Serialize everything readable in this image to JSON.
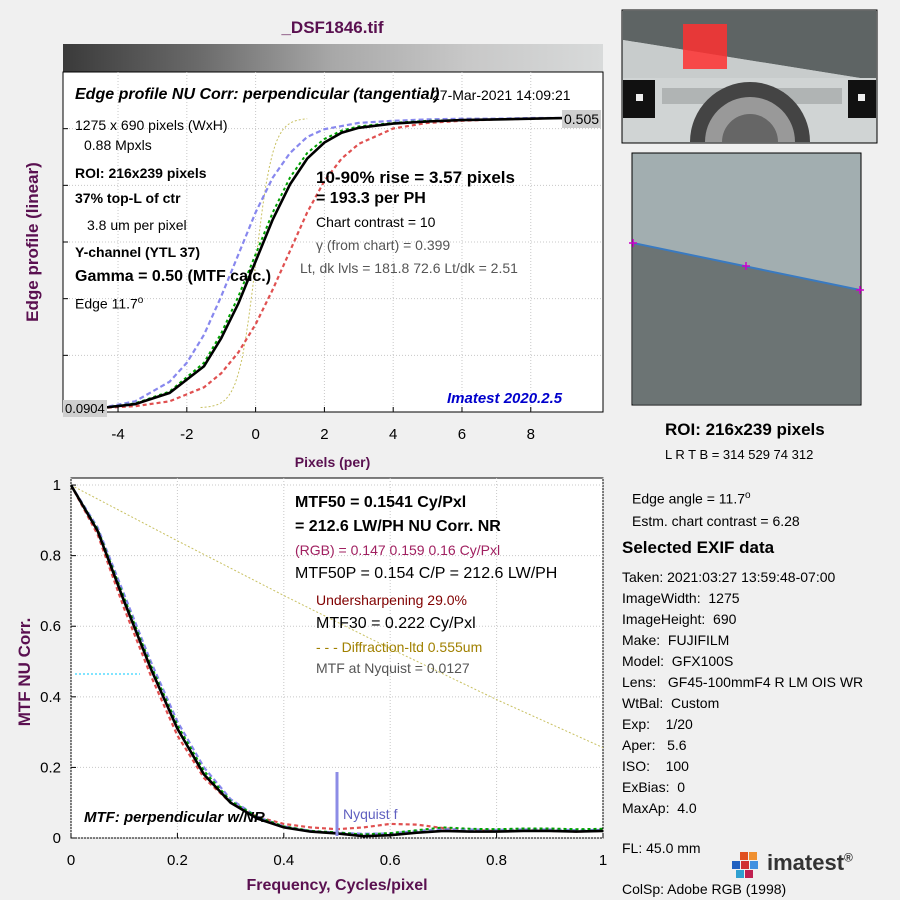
{
  "window": {
    "title": "_DSF1846.tif"
  },
  "top_chart": {
    "ylabel": "Edge profile (linear)",
    "xlabel": "Pixels (per)",
    "title": "Edge profile  NU Corr: perpendicular (tangential)",
    "timestamp": "27-Mar-2021 14:09:21",
    "max_label": "0.505",
    "min_label": "0.0904",
    "version": "Imatest 2020.2.5",
    "info": {
      "dims": "1275 x 690 pixels (WxH)",
      "mpxls": "0.88 Mpxls",
      "roi": "ROI:  216x239 pixels",
      "pos": "37% top-L of ctr",
      "pixel_size": "3.8 um per pixel",
      "channel": "Y-channel  (YTL 37)",
      "gamma": "Gamma = 0.50 (MTF calc.)",
      "edge_label": "Edge   11.7",
      "edge_deg": "o"
    },
    "rise": {
      "line1": "10-90% rise = 3.57 pixels",
      "line2": "=  193.3 per PH",
      "contrast": "Chart contrast = 10",
      "gamma": "γ  (from chart) = 0.399",
      "levels": "Lt, dk lvls = 181.8  72.6  Lt/dk = 2.51"
    }
  },
  "bottom_chart": {
    "ylabel": "MTF  NU Corr.",
    "xlabel": "Frequency, Cycles/pixel",
    "mtf50_line1": "MTF50 = 0.1541 Cy/Pxl",
    "mtf50_line2": "= 212.6 LW/PH  NU Corr.  NR",
    "rgb": "(RGB) = 0.147  0.159  0.16 Cy/Pxl",
    "mtf50p": "MTF50P = 0.154 C/P = 212.6 LW/PH",
    "undersharp": "Undersharpening 29.0%",
    "mtf30": "MTF30 = 0.222 Cy/Pxl",
    "diffraction": "- - - Diffraction-ltd  0.555um",
    "nyquist_mtf": "MTF at Nyquist = 0.0127",
    "nyquist_label": "Nyquist f",
    "caption": "MTF: perpendicular w/NR"
  },
  "roi_panel": {
    "title": "ROI:  216x239 pixels",
    "coords": "L R  T B = 314  529   74  312",
    "edge_angle": "Edge angle = 11.7",
    "edge_angle_deg": "o",
    "contrast": "Estm. chart contrast = 6.28"
  },
  "exif": {
    "title": "Selected EXIF data",
    "rows": [
      "Taken: 2021:03:27 13:59:48-07:00",
      "ImageWidth:  1275",
      "ImageHeight:  690",
      "Make:  FUJIFILM",
      "Model:  GFX100S",
      "Lens:   GF45-100mmF4 R LM OIS WR",
      "WtBal:  Custom",
      "Exp:    1/20",
      "Aper:   5.6",
      "ISO:    100",
      "ExBias:  0",
      "MaxAp:  4.0"
    ],
    "fl": "FL:     45.0 mm",
    "colsp": "ColSp:  Adobe RGB (1998)"
  },
  "logo": {
    "text": "imatest",
    "mark": "®"
  },
  "colors": {
    "title": "#5a1050",
    "axis_label": "#5a1050",
    "black": "#000000",
    "green": "#00a000",
    "red": "#e05050",
    "blue": "#8888ee",
    "diffraction": "#c8c060",
    "version": "#0000cc",
    "rgb": "#a02060",
    "undersharp": "#800000",
    "diffraction_text": "#a08000",
    "gray": "#555555",
    "nyquist_line": "#8c8ce6",
    "cyan": "#00c8ff",
    "roi_marker": "#cc00cc"
  },
  "chart_data": [
    {
      "type": "line",
      "x_ticks": [
        -4,
        -2,
        0,
        2,
        4,
        6,
        8
      ],
      "xlim": [
        -5.6,
        10.1
      ],
      "ylim": [
        0.0904,
        0.505
      ],
      "grid": true,
      "series": [
        {
          "color": "black",
          "x": [
            -4.5,
            -3.5,
            -2.5,
            -1.5,
            -1,
            -0.5,
            0,
            0.5,
            1,
            1.5,
            2,
            2.5,
            3,
            4,
            5,
            6,
            7,
            8,
            9
          ],
          "y": [
            0.0904,
            0.096,
            0.112,
            0.15,
            0.19,
            0.24,
            0.3,
            0.36,
            0.41,
            0.447,
            0.47,
            0.484,
            0.491,
            0.497,
            0.5,
            0.502,
            0.503,
            0.504,
            0.505
          ]
        },
        {
          "color": "green",
          "x": [
            -4.5,
            -3.5,
            -2.5,
            -1.5,
            -1,
            -0.5,
            0,
            0.5,
            1,
            1.5,
            2,
            2.5,
            3,
            4,
            5,
            6,
            7,
            8,
            9
          ],
          "y": [
            0.0904,
            0.097,
            0.114,
            0.155,
            0.197,
            0.25,
            0.31,
            0.37,
            0.42,
            0.455,
            0.475,
            0.487,
            0.493,
            0.498,
            0.501,
            0.502,
            0.503,
            0.504,
            0.505
          ]
        },
        {
          "color": "blue",
          "x": [
            -4.5,
            -3.5,
            -2.5,
            -2,
            -1.5,
            -1,
            -0.5,
            0,
            0.5,
            1,
            1.5,
            2,
            3,
            4,
            5,
            6,
            7,
            8,
            9
          ],
          "y": [
            0.0904,
            0.1,
            0.128,
            0.155,
            0.195,
            0.25,
            0.31,
            0.37,
            0.42,
            0.455,
            0.478,
            0.489,
            0.498,
            0.501,
            0.503,
            0.504,
            0.504,
            0.505,
            0.505
          ]
        },
        {
          "color": "red",
          "x": [
            -4.5,
            -3.5,
            -2.5,
            -1.5,
            -1,
            -0.5,
            0,
            0.5,
            1,
            1.5,
            2,
            2.5,
            3,
            4,
            5,
            6,
            7,
            8,
            9
          ],
          "y": [
            0.0904,
            0.093,
            0.1,
            0.12,
            0.14,
            0.17,
            0.21,
            0.26,
            0.315,
            0.37,
            0.415,
            0.447,
            0.468,
            0.49,
            0.498,
            0.501,
            0.503,
            0.504,
            0.505
          ]
        }
      ]
    },
    {
      "type": "line",
      "x_ticks": [
        0,
        0.2,
        0.4,
        0.6,
        0.8,
        1
      ],
      "y_ticks": [
        0,
        0.2,
        0.4,
        0.6,
        0.8,
        1
      ],
      "xlim": [
        0,
        1
      ],
      "ylim": [
        0,
        1.02
      ],
      "grid": true,
      "series": [
        {
          "color": "black",
          "x": [
            0,
            0.05,
            0.1,
            0.15,
            0.2,
            0.25,
            0.3,
            0.35,
            0.4,
            0.45,
            0.5,
            0.55,
            0.6,
            0.65,
            0.7,
            0.75,
            0.8,
            0.85,
            0.9,
            0.95,
            1
          ],
          "y": [
            1,
            0.87,
            0.67,
            0.48,
            0.31,
            0.18,
            0.1,
            0.055,
            0.03,
            0.018,
            0.013,
            0.005,
            0.008,
            0.015,
            0.02,
            0.018,
            0.018,
            0.02,
            0.02,
            0.018,
            0.02
          ]
        },
        {
          "color": "green",
          "x": [
            0,
            0.05,
            0.1,
            0.15,
            0.2,
            0.25,
            0.3,
            0.35,
            0.4,
            0.45,
            0.5,
            0.55,
            0.6,
            0.65,
            0.7,
            0.75,
            0.8,
            0.85,
            0.9,
            0.95,
            1
          ],
          "y": [
            1,
            0.875,
            0.68,
            0.49,
            0.32,
            0.19,
            0.105,
            0.06,
            0.033,
            0.02,
            0.016,
            0.01,
            0.014,
            0.022,
            0.03,
            0.026,
            0.025,
            0.027,
            0.027,
            0.025,
            0.026
          ]
        },
        {
          "color": "blue",
          "x": [
            0,
            0.05,
            0.1,
            0.15,
            0.2,
            0.25,
            0.3,
            0.35,
            0.4,
            0.45,
            0.5,
            0.55,
            0.6,
            0.65,
            0.7,
            0.75,
            0.8,
            0.85,
            0.9,
            0.95,
            1
          ],
          "y": [
            1,
            0.88,
            0.69,
            0.5,
            0.33,
            0.2,
            0.11,
            0.06,
            0.033,
            0.02,
            0.015,
            0.012,
            0.013,
            0.02,
            0.025,
            0.024,
            0.023,
            0.024,
            0.024,
            0.022,
            0.023
          ]
        },
        {
          "color": "red",
          "x": [
            0,
            0.05,
            0.1,
            0.15,
            0.2,
            0.25,
            0.3,
            0.35,
            0.4,
            0.45,
            0.5,
            0.55,
            0.6,
            0.65,
            0.7,
            0.75,
            0.8,
            0.85,
            0.9,
            0.95,
            1
          ],
          "y": [
            1,
            0.86,
            0.65,
            0.46,
            0.29,
            0.17,
            0.1,
            0.06,
            0.04,
            0.03,
            0.025,
            0.03,
            0.04,
            0.038,
            0.028,
            0.022,
            0.02,
            0.022,
            0.02,
            0.018,
            0.02
          ]
        },
        {
          "color": "diffraction",
          "x": [
            0,
            0.2,
            0.4,
            0.6,
            0.8,
            1
          ],
          "y": [
            1,
            0.842,
            0.687,
            0.537,
            0.392,
            0.256
          ]
        }
      ]
    }
  ]
}
